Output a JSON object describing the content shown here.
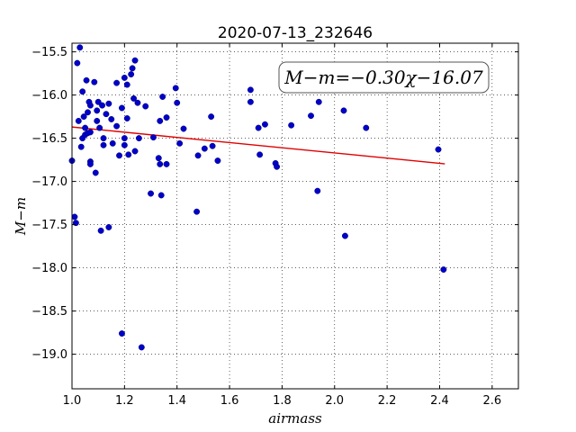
{
  "chart_data": {
    "type": "scatter",
    "title": "2020-07-13_232646",
    "xlabel": "airmass",
    "ylabel": "M−m",
    "xlim": [
      1.0,
      2.7
    ],
    "ylim": [
      -19.4,
      -15.4
    ],
    "y_inverted": true,
    "grid": true,
    "x_ticks": [
      1.0,
      1.2,
      1.4,
      1.6,
      1.8,
      2.0,
      2.2,
      2.4,
      2.6
    ],
    "x_tick_labels": [
      "1.0",
      "1.2",
      "1.4",
      "1.6",
      "1.8",
      "2.0",
      "2.2",
      "2.4",
      "2.6"
    ],
    "y_ticks": [
      -15.5,
      -16.0,
      -16.5,
      -17.0,
      -17.5,
      -18.0,
      -18.5,
      -19.0
    ],
    "y_tick_labels": [
      "−15.5",
      "−16.0",
      "−16.5",
      "−17.0",
      "−17.5",
      "−18.0",
      "−18.5",
      "−19.0"
    ],
    "annotation": "M−m=−0.30χ−16.07",
    "point_color": "#0000cc",
    "fit_color": "#e00000",
    "fit": {
      "slope": -0.3,
      "intercept": -16.07,
      "x_start": 1.0,
      "x_end": 2.42
    },
    "points": [
      [
        1.0,
        -16.76
      ],
      [
        1.01,
        -17.41
      ],
      [
        1.015,
        -17.48
      ],
      [
        1.02,
        -15.63
      ],
      [
        1.025,
        -16.3
      ],
      [
        1.03,
        -15.45
      ],
      [
        1.035,
        -16.6
      ],
      [
        1.04,
        -16.5
      ],
      [
        1.04,
        -15.96
      ],
      [
        1.045,
        -16.25
      ],
      [
        1.05,
        -16.38
      ],
      [
        1.05,
        -16.46
      ],
      [
        1.055,
        -15.83
      ],
      [
        1.06,
        -16.2
      ],
      [
        1.06,
        -16.44
      ],
      [
        1.065,
        -16.08
      ],
      [
        1.07,
        -16.12
      ],
      [
        1.07,
        -16.77
      ],
      [
        1.07,
        -16.8
      ],
      [
        1.07,
        -16.43
      ],
      [
        1.085,
        -15.85
      ],
      [
        1.09,
        -16.9
      ],
      [
        1.095,
        -16.3
      ],
      [
        1.095,
        -16.18
      ],
      [
        1.1,
        -16.08
      ],
      [
        1.105,
        -16.38
      ],
      [
        1.11,
        -17.57
      ],
      [
        1.115,
        -16.12
      ],
      [
        1.12,
        -16.58
      ],
      [
        1.12,
        -16.5
      ],
      [
        1.13,
        -16.22
      ],
      [
        1.14,
        -16.1
      ],
      [
        1.14,
        -17.53
      ],
      [
        1.15,
        -16.28
      ],
      [
        1.155,
        -16.56
      ],
      [
        1.17,
        -16.36
      ],
      [
        1.17,
        -15.86
      ],
      [
        1.18,
        -16.7
      ],
      [
        1.19,
        -16.15
      ],
      [
        1.19,
        -18.76
      ],
      [
        1.2,
        -15.8
      ],
      [
        1.2,
        -16.5
      ],
      [
        1.2,
        -16.58
      ],
      [
        1.21,
        -15.88
      ],
      [
        1.21,
        -16.27
      ],
      [
        1.215,
        -16.69
      ],
      [
        1.225,
        -15.76
      ],
      [
        1.23,
        -15.69
      ],
      [
        1.235,
        -16.04
      ],
      [
        1.24,
        -15.6
      ],
      [
        1.24,
        -16.65
      ],
      [
        1.25,
        -16.09
      ],
      [
        1.255,
        -16.5
      ],
      [
        1.265,
        -18.92
      ],
      [
        1.28,
        -16.13
      ],
      [
        1.3,
        -17.14
      ],
      [
        1.31,
        -16.49
      ],
      [
        1.33,
        -16.73
      ],
      [
        1.335,
        -16.8
      ],
      [
        1.335,
        -16.3
      ],
      [
        1.34,
        -17.16
      ],
      [
        1.345,
        -16.02
      ],
      [
        1.36,
        -16.8
      ],
      [
        1.36,
        -16.26
      ],
      [
        1.395,
        -15.92
      ],
      [
        1.4,
        -16.09
      ],
      [
        1.41,
        -16.56
      ],
      [
        1.425,
        -16.39
      ],
      [
        1.475,
        -17.35
      ],
      [
        1.48,
        -16.7
      ],
      [
        1.505,
        -16.62
      ],
      [
        1.53,
        -16.25
      ],
      [
        1.535,
        -16.59
      ],
      [
        1.555,
        -16.76
      ],
      [
        1.68,
        -15.94
      ],
      [
        1.68,
        -16.08
      ],
      [
        1.71,
        -16.38
      ],
      [
        1.715,
        -16.69
      ],
      [
        1.735,
        -16.34
      ],
      [
        1.775,
        -16.79
      ],
      [
        1.78,
        -16.83
      ],
      [
        1.835,
        -16.35
      ],
      [
        1.91,
        -16.24
      ],
      [
        1.935,
        -17.11
      ],
      [
        1.94,
        -16.08
      ],
      [
        2.035,
        -16.18
      ],
      [
        2.04,
        -17.63
      ],
      [
        2.12,
        -16.38
      ],
      [
        2.395,
        -16.63
      ],
      [
        2.415,
        -18.02
      ]
    ]
  }
}
